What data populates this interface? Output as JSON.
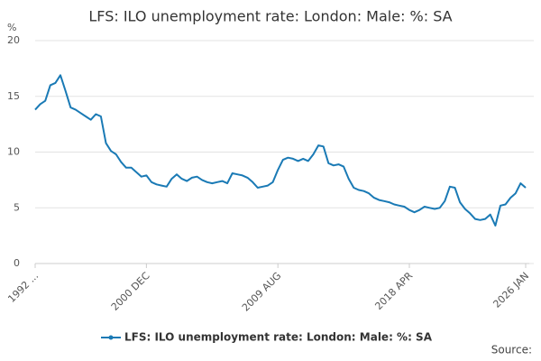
{
  "chart_data": {
    "type": "line",
    "title": "LFS: ILO unemployment rate: London: Male: %: SA",
    "y_label": "%",
    "source": "Source:",
    "categories": [
      "1992 ...",
      null,
      null,
      null,
      null,
      null,
      null,
      null,
      null,
      null,
      null,
      null,
      null,
      null,
      null,
      null,
      null,
      null,
      null,
      null,
      null,
      null,
      "2000 DEC",
      null,
      null,
      null,
      null,
      null,
      null,
      null,
      null,
      null,
      null,
      null,
      null,
      null,
      null,
      null,
      null,
      null,
      null,
      null,
      null,
      null,
      null,
      null,
      null,
      null,
      "2009 AUG",
      null,
      null,
      null,
      null,
      null,
      null,
      null,
      null,
      null,
      null,
      null,
      null,
      null,
      null,
      null,
      null,
      null,
      null,
      null,
      null,
      null,
      null,
      null,
      null,
      null,
      "2018 APR",
      null,
      null,
      null,
      null,
      null,
      null,
      null,
      null,
      null,
      null,
      null,
      null,
      null,
      null,
      null,
      null,
      null,
      null,
      null,
      null,
      null,
      null,
      "2026 JAN"
    ],
    "series": [
      {
        "name": "LFS: ILO unemployment rate: London: Male: %: SA",
        "color": "#1a7ab5",
        "values": [
          13.8,
          14.3,
          14.6,
          16.0,
          16.2,
          16.9,
          15.5,
          14.0,
          13.8,
          13.5,
          13.2,
          12.9,
          13.4,
          13.2,
          10.8,
          10.1,
          9.8,
          9.1,
          8.6,
          8.6,
          8.2,
          7.8,
          7.9,
          7.3,
          7.1,
          7.0,
          6.9,
          7.6,
          8.0,
          7.6,
          7.4,
          7.7,
          7.8,
          7.5,
          7.3,
          7.2,
          7.3,
          7.4,
          7.2,
          8.1,
          8.0,
          7.9,
          7.7,
          7.3,
          6.8,
          6.9,
          7.0,
          7.3,
          8.4,
          9.3,
          9.5,
          9.4,
          9.2,
          9.4,
          9.2,
          9.8,
          10.6,
          10.5,
          9.0,
          8.8,
          8.9,
          8.7,
          7.6,
          6.8,
          6.6,
          6.5,
          6.3,
          5.9,
          5.7,
          5.6,
          5.5,
          5.3,
          5.2,
          5.1,
          4.8,
          4.6,
          4.8,
          5.1,
          5.0,
          4.9,
          5.0,
          5.6,
          6.9,
          6.8,
          5.5,
          4.9,
          4.5,
          4.0,
          3.9,
          4.0,
          4.4,
          3.4,
          5.2,
          5.3,
          5.9,
          6.3,
          7.2,
          6.8
        ]
      }
    ],
    "ylim": [
      0,
      20
    ],
    "yticks": [
      0,
      5,
      10,
      15,
      20
    ],
    "grid": true,
    "legend": "bottom"
  }
}
